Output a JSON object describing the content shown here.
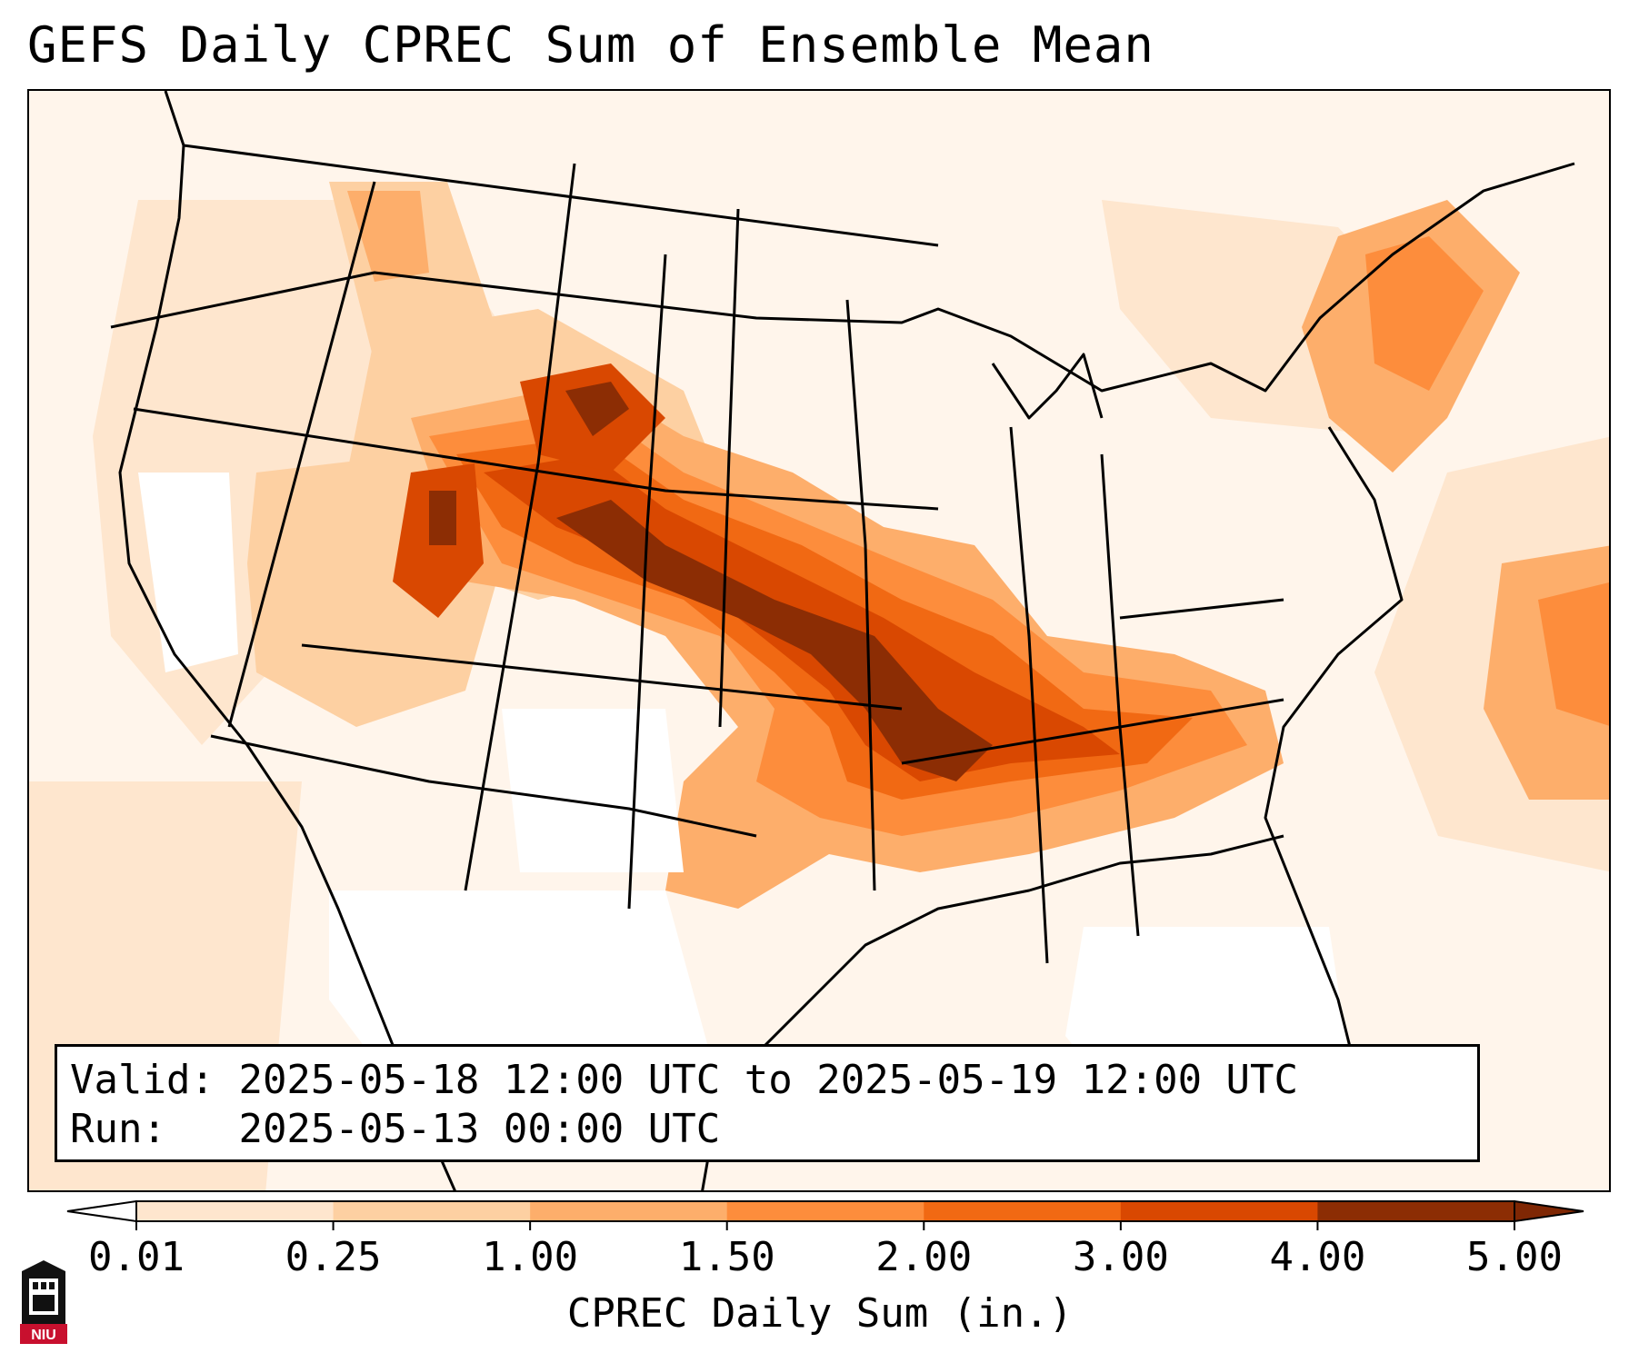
{
  "title": "GEFS Daily CPREC Sum of Ensemble Mean",
  "info": {
    "valid_label": "Valid:",
    "valid_value": "2025-05-18 12:00 UTC to 2025-05-19 12:00 UTC",
    "run_label": "Run:",
    "run_value": "2025-05-13 00:00 UTC"
  },
  "colorbar": {
    "label": "CPREC Daily Sum (in.)",
    "ticks": [
      "0.01",
      "0.25",
      "1.00",
      "1.50",
      "2.00",
      "3.00",
      "4.00",
      "5.00"
    ],
    "colors": [
      "#fff5eb",
      "#fee6ce",
      "#fdd0a2",
      "#fdae6b",
      "#fd8d3c",
      "#f16913",
      "#d94801",
      "#8c2d04"
    ],
    "under_color": "#ffffff",
    "over_color": "#7f2704"
  },
  "logo": {
    "text": "NIU"
  }
}
